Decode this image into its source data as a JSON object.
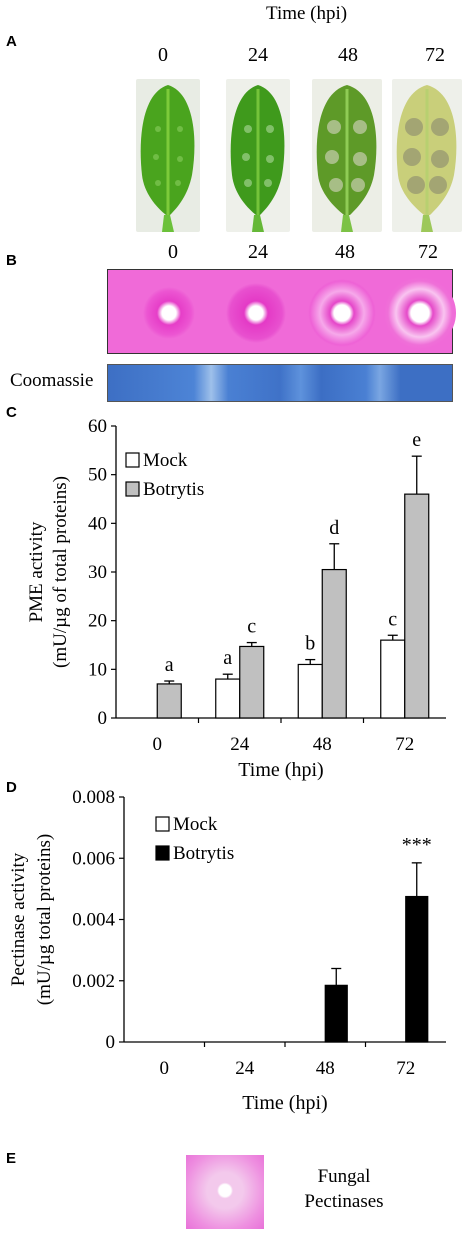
{
  "panels": {
    "a": {
      "letter": "A",
      "title": "Time (hpi)",
      "times": [
        "0",
        "24",
        "48",
        "72"
      ]
    },
    "b": {
      "letter": "B",
      "times": [
        "0",
        "24",
        "48",
        "72"
      ],
      "coomassie_label": "Coomassie"
    },
    "c": {
      "letter": "C"
    },
    "d": {
      "letter": "D"
    },
    "e": {
      "letter": "E",
      "label_line1": "Fungal",
      "label_line2": "Pectinases"
    }
  },
  "colors": {
    "gel_pink": "#f06ad8",
    "coomassie_blue": "#4a7fd0",
    "mock_fill": "#ffffff",
    "botrytis_fill_c": "#c0c0c0",
    "botrytis_fill_d": "#000000"
  },
  "chart_data": [
    {
      "type": "bar",
      "categories": [
        "0",
        "24",
        "48",
        "72"
      ],
      "series": [
        {
          "name": "Mock",
          "values": [
            null,
            8,
            11,
            16
          ],
          "errors": [
            null,
            1,
            1,
            1
          ]
        },
        {
          "name": "Botrytis",
          "values": [
            7,
            14.7,
            30.5,
            46
          ],
          "errors": [
            0.6,
            0.8,
            5.3,
            7.8
          ]
        }
      ],
      "letters": {
        "Mock": [
          null,
          "a",
          "b",
          "c"
        ],
        "Botrytis": [
          "a",
          "c",
          "d",
          "e"
        ]
      },
      "yticks": [
        "0",
        "10",
        "20",
        "30",
        "40",
        "50",
        "60"
      ],
      "ylim": [
        0,
        60
      ],
      "xlabel": "Time (hpi)",
      "ylabel_line1": "PME activity",
      "ylabel_line2": "(mU/µg of total proteins)",
      "legend": [
        "Mock",
        "Botrytis"
      ],
      "legend_position": "top-left"
    },
    {
      "type": "bar",
      "categories": [
        "0",
        "24",
        "48",
        "72"
      ],
      "series": [
        {
          "name": "Mock",
          "values": [
            0,
            0,
            0,
            0
          ],
          "errors": [
            0,
            0,
            0,
            0
          ]
        },
        {
          "name": "Botrytis",
          "values": [
            0,
            0,
            0.00185,
            0.00475
          ],
          "errors": [
            0,
            0,
            0.00055,
            0.0011
          ]
        }
      ],
      "annotations": [
        null,
        null,
        null,
        "***"
      ],
      "yticks": [
        "0",
        "0.002",
        "0.004",
        "0.006",
        "0.008"
      ],
      "ylim": [
        0,
        0.008
      ],
      "xlabel": "Time (hpi)",
      "ylabel_line1": "Pectinase activity",
      "ylabel_line2": "(mU/µg total proteins)",
      "legend": [
        "Mock",
        "Botrytis"
      ],
      "legend_position": "top-left"
    }
  ]
}
